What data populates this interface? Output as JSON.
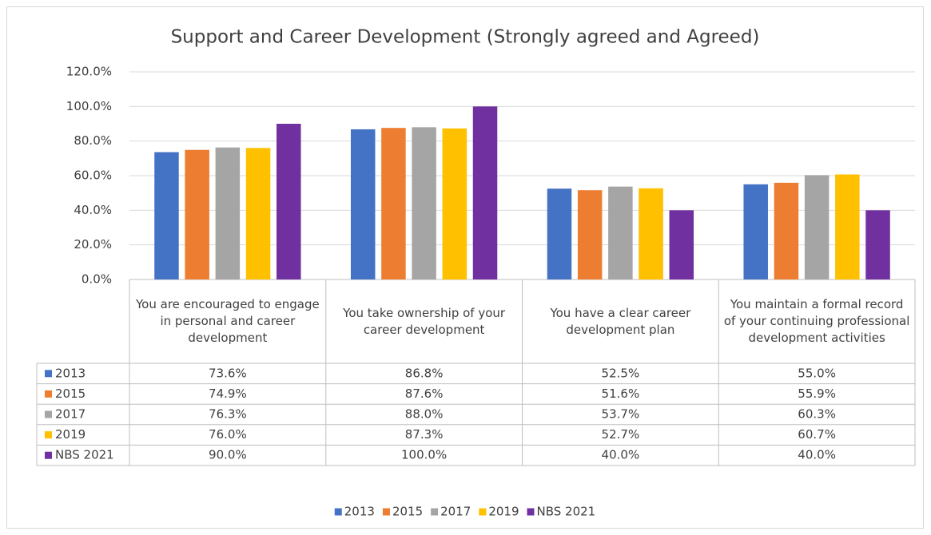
{
  "chart_data": {
    "type": "bar",
    "title": "Support and Career Development (Strongly agreed and Agreed)",
    "categories": [
      "You are encouraged to engage in personal and career development",
      "You take ownership of your career development",
      "You have a clear career development plan",
      "You maintain a formal record of your continuing professional development activities"
    ],
    "series": [
      {
        "name": "2013",
        "color": "#4472c4",
        "values": [
          73.6,
          86.8,
          52.5,
          55.0
        ],
        "value_labels": [
          "73.6%",
          "86.8%",
          "52.5%",
          "55.0%"
        ]
      },
      {
        "name": "2015",
        "color": "#ed7d31",
        "values": [
          74.9,
          87.6,
          51.6,
          55.9
        ],
        "value_labels": [
          "74.9%",
          "87.6%",
          "51.6%",
          "55.9%"
        ]
      },
      {
        "name": "2017",
        "color": "#a5a5a5",
        "values": [
          76.3,
          88.0,
          53.7,
          60.3
        ],
        "value_labels": [
          "76.3%",
          "88.0%",
          "53.7%",
          "60.3%"
        ]
      },
      {
        "name": "2019",
        "color": "#ffc000",
        "values": [
          76.0,
          87.3,
          52.7,
          60.7
        ],
        "value_labels": [
          "76.0%",
          "87.3%",
          "52.7%",
          "60.7%"
        ]
      },
      {
        "name": "NBS 2021",
        "color": "#7030a0",
        "values": [
          90.0,
          100.0,
          40.0,
          40.0
        ],
        "value_labels": [
          "90.0%",
          "100.0%",
          "40.0%",
          "40.0%"
        ]
      }
    ],
    "ylim": [
      0,
      120
    ],
    "yticks": [
      {
        "value": 0,
        "label": "0.0%"
      },
      {
        "value": 20,
        "label": "20.0%"
      },
      {
        "value": 40,
        "label": "40.0%"
      },
      {
        "value": 60,
        "label": "60.0%"
      },
      {
        "value": 80,
        "label": "80.0%"
      },
      {
        "value": 100,
        "label": "100.0%"
      },
      {
        "value": 120,
        "label": "120.0%"
      }
    ],
    "grid": true
  }
}
